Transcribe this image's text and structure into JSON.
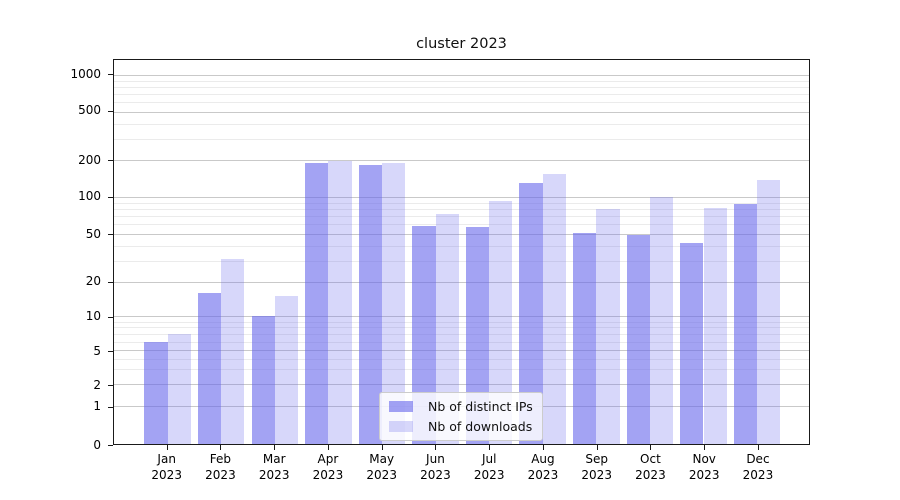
{
  "chart_data": {
    "type": "bar",
    "title": "cluster 2023",
    "categories": [
      [
        "Jan",
        "2023"
      ],
      [
        "Feb",
        "2023"
      ],
      [
        "Mar",
        "2023"
      ],
      [
        "Apr",
        "2023"
      ],
      [
        "May",
        "2023"
      ],
      [
        "Jun",
        "2023"
      ],
      [
        "Jul",
        "2023"
      ],
      [
        "Aug",
        "2023"
      ],
      [
        "Sep",
        "2023"
      ],
      [
        "Oct",
        "2023"
      ],
      [
        "Nov",
        "2023"
      ],
      [
        "Dec",
        "2023"
      ]
    ],
    "series": [
      {
        "name": "Nb of distinct IPs",
        "color": "rgba(102,102,235,0.60)",
        "values": [
          6,
          16,
          10,
          192,
          184,
          58,
          57,
          130,
          51,
          49,
          42,
          87
        ]
      },
      {
        "name": "Nb of downloads",
        "color": "rgba(102,102,235,0.26)",
        "values": [
          7,
          31,
          15,
          197,
          190,
          73,
          93,
          154,
          80,
          100,
          81,
          137
        ]
      }
    ],
    "y_axis": {
      "scale": "log-like with 0 baseline (symlog)",
      "ticks": [
        0,
        1,
        2,
        5,
        10,
        20,
        50,
        100,
        200,
        500,
        1000
      ],
      "minor_ticks": [
        3,
        4,
        6,
        7,
        8,
        9,
        30,
        40,
        60,
        70,
        80,
        90,
        300,
        400,
        600,
        700,
        800,
        900
      ],
      "ylim": [
        0,
        1100
      ],
      "grid": "on"
    },
    "xlabel": "",
    "ylabel": "",
    "legend": {
      "position": "lower center",
      "entries": [
        "Nb of distinct IPs",
        "Nb of downloads"
      ]
    },
    "colors": {
      "bar_dark": "rgba(102,102,235,0.60)",
      "bar_light": "rgba(102,102,235,0.26)",
      "grid_major": "#c9c9c9",
      "grid_minor": "#ebebeb",
      "spine": "#1a1a1a",
      "background": "#ffffff"
    }
  }
}
